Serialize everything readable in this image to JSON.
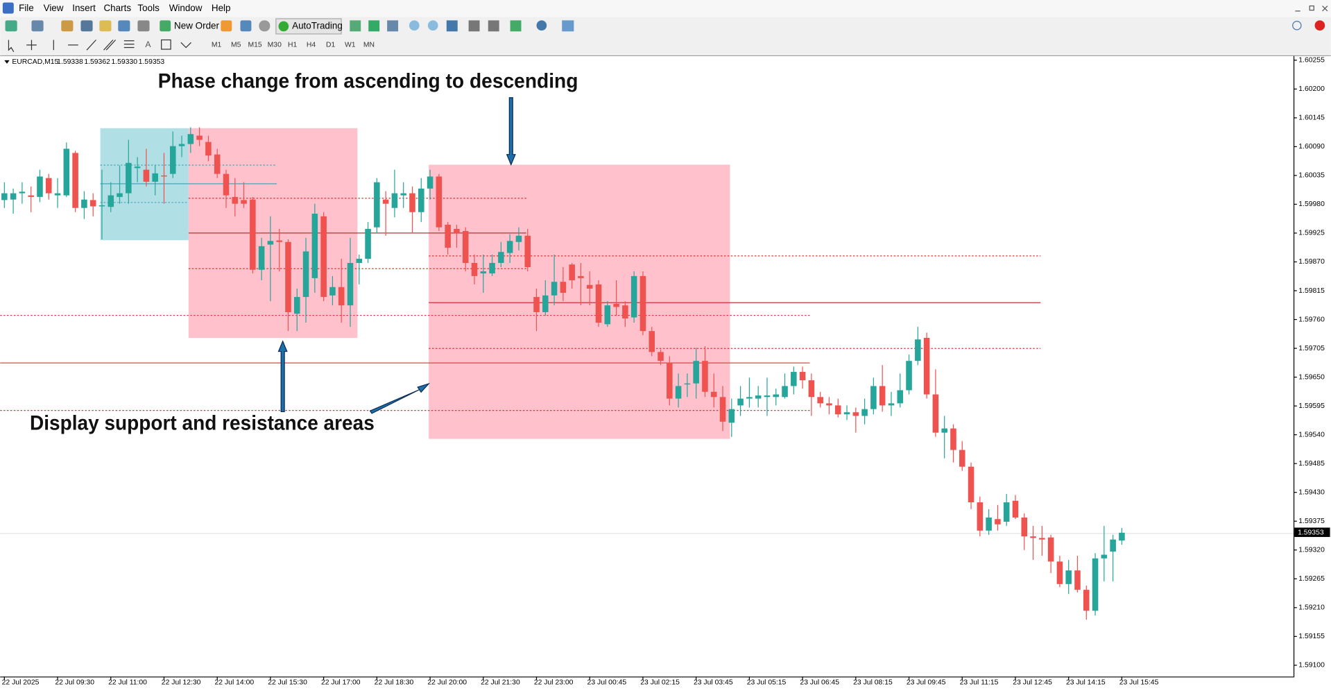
{
  "menu": [
    "File",
    "View",
    "Insert",
    "Charts",
    "Tools",
    "Window",
    "Help"
  ],
  "toolbar": {
    "new_order": "New Order",
    "autotrading": "AutoTrading",
    "timeframes": [
      "M1",
      "M5",
      "M15",
      "M30",
      "H1",
      "H4",
      "D1",
      "W1",
      "MN"
    ]
  },
  "header": {
    "symbol": "EURCAD,M15",
    "ohlc": [
      "1.59338",
      "1.59362",
      "1.59330",
      "1.59353"
    ]
  },
  "chart_data": {
    "type": "candlestick",
    "annotations": [
      "Phase change from ascending to descending",
      "Display support and resistance areas"
    ],
    "up_color": "#26a69a",
    "down_color": "#ef5350",
    "grid": false,
    "ylim": [
      1.5908,
      1.60263
    ],
    "yticks": [
      1.60255,
      {
        "value": 1.602,
        "label": "1.60200"
      },
      1.60145,
      {
        "value": 1.6009,
        "label": "1.60090"
      },
      1.60035,
      {
        "value": 1.5998,
        "label": "1.59980"
      },
      1.59925,
      {
        "value": 1.5987,
        "label": "1.59870"
      },
      1.59815,
      {
        "value": 1.5976,
        "label": "1.59760"
      },
      1.59705,
      {
        "value": 1.5965,
        "label": "1.59650"
      },
      1.59595,
      {
        "value": 1.5954,
        "label": "1.59540"
      },
      1.59485,
      {
        "value": 1.5943,
        "label": "1.59430"
      },
      1.59375,
      {
        "value": 1.5932,
        "label": "1.59320"
      },
      1.59265,
      {
        "value": 1.5921,
        "label": "1.59210"
      },
      1.59155,
      {
        "value": 1.591,
        "label": "1.59100"
      }
    ],
    "categories": [
      "22 Jul 2025",
      null,
      null,
      null,
      null,
      null,
      "22 Jul 09:30",
      null,
      null,
      null,
      null,
      null,
      "22 Jul 11:00",
      null,
      null,
      null,
      null,
      null,
      "22 Jul 12:30",
      null,
      null,
      null,
      null,
      null,
      "22 Jul 14:00",
      null,
      null,
      null,
      null,
      null,
      "22 Jul 15:30",
      null,
      null,
      null,
      null,
      null,
      "22 Jul 17:00",
      null,
      null,
      null,
      null,
      null,
      "22 Jul 18:30",
      null,
      null,
      null,
      null,
      null,
      "22 Jul 20:00",
      null,
      null,
      null,
      null,
      null,
      "22 Jul 21:30",
      null,
      null,
      null,
      null,
      null,
      "22 Jul 23:00",
      null,
      null,
      null,
      null,
      null,
      "23 Jul 00:45",
      null,
      null,
      null,
      null,
      null,
      "23 Jul 02:15",
      null,
      null,
      null,
      null,
      null,
      "23 Jul 03:45",
      null,
      null,
      null,
      null,
      null,
      "23 Jul 05:15",
      null,
      null,
      null,
      null,
      null,
      "23 Jul 06:45",
      null,
      null,
      null,
      null,
      null,
      "23 Jul 08:15",
      null,
      null,
      null,
      null,
      null,
      "23 Jul 09:45",
      null,
      null,
      null,
      null,
      null,
      "23 Jul 11:15",
      null,
      null,
      null,
      null,
      null,
      "23 Jul 12:45",
      null,
      null,
      null,
      null,
      null,
      "23 Jul 14:15",
      null,
      null,
      null,
      null,
      null,
      "23 Jul 15:45"
    ],
    "open": [
      1.59988,
      1.59989,
      1.60001,
      1.59997,
      1.59994,
      1.6003,
      1.59997,
      1.59997,
      1.60078,
      1.59973,
      1.59988,
      1.59976,
      1.59975,
      1.59994,
      1.60001,
      1.60049,
      1.60046,
      1.60023,
      1.60035,
      1.60038,
      1.60091,
      1.60095,
      1.60111,
      1.60099,
      1.60075,
      1.60038,
      1.59994,
      1.59988,
      1.59989,
      1.59855,
      1.59903,
      1.59911,
      1.59908,
      1.59771,
      1.59803,
      1.59839,
      1.59957,
      1.59806,
      1.59822,
      1.59787,
      1.59868,
      1.59876,
      1.59936,
      1.59989,
      1.59973,
      1.59997,
      1.60001,
      1.59965,
      1.6001,
      1.60033,
      1.59941,
      1.59933,
      1.59929,
      1.59868,
      1.59848,
      1.59848,
      1.59868,
      1.59887,
      1.59908,
      1.5992,
      1.59803,
      1.59774,
      1.59806,
      1.59832,
      1.59865,
      1.59843,
      1.59826,
      1.59827,
      1.59751,
      1.5979,
      1.59787,
      1.59764,
      1.59843,
      1.59738,
      1.59698,
      1.59677,
      1.59609,
      1.59636,
      1.59638,
      1.59681,
      1.59622,
      1.59612,
      1.59563,
      1.59596,
      1.59609,
      1.59609,
      1.59612,
      1.59612,
      1.59612,
      1.59633,
      1.5966,
      1.59644,
      1.59612,
      1.596,
      1.59596,
      1.59579,
      1.59583,
      1.59576,
      1.59589,
      1.59633,
      1.59596,
      1.596,
      1.59625,
      1.59681,
      1.59725,
      1.59617,
      1.59544,
      1.59552,
      1.59511,
      1.59479,
      1.59411,
      1.59357,
      1.59379,
      1.59374,
      1.59414,
      1.59382,
      1.59346,
      1.59343,
      1.59344,
      1.59298,
      1.59255,
      1.59281,
      1.59244,
      1.59204,
      1.59304,
      1.59317,
      1.59338
    ],
    "high": [
      1.60022,
      1.6001,
      1.60022,
      1.60014,
      1.60046,
      1.60038,
      1.6003,
      1.60098,
      1.60082,
      1.60005,
      1.60001,
      1.60046,
      1.60022,
      1.60054,
      1.60103,
      1.6007,
      1.60086,
      1.60054,
      1.60078,
      1.60119,
      1.60111,
      1.60127,
      1.60127,
      1.60111,
      1.60086,
      1.60046,
      1.6003,
      1.60022,
      1.59994,
      1.59916,
      1.59957,
      1.59933,
      1.59913,
      1.59819,
      1.59916,
      1.59981,
      1.59965,
      1.59843,
      1.59876,
      1.59916,
      1.59884,
      1.59946,
      1.6003,
      1.60005,
      1.60046,
      1.60022,
      1.60014,
      1.6003,
      1.60046,
      1.60038,
      1.59946,
      1.59941,
      1.59936,
      1.59884,
      1.59884,
      1.59884,
      1.59908,
      1.59923,
      1.59936,
      1.59933,
      1.59819,
      1.59835,
      1.59884,
      1.5986,
      1.59868,
      1.59868,
      1.59852,
      1.59835,
      1.59795,
      1.59835,
      1.59795,
      1.59852,
      1.59852,
      1.59746,
      1.59703,
      1.5969,
      1.59657,
      1.59657,
      1.59706,
      1.59709,
      1.59657,
      1.59633,
      1.59609,
      1.59633,
      1.59649,
      1.59633,
      1.59649,
      1.59628,
      1.59657,
      1.5967,
      1.5967,
      1.59657,
      1.59622,
      1.59612,
      1.59609,
      1.59596,
      1.59592,
      1.59609,
      1.59649,
      1.59673,
      1.59622,
      1.59657,
      1.59693,
      1.59746,
      1.59735,
      1.59665,
      1.59576,
      1.5956,
      1.59528,
      1.59487,
      1.59422,
      1.59398,
      1.59406,
      1.59427,
      1.59425,
      1.5939,
      1.59366,
      1.59366,
      1.59349,
      1.59309,
      1.59301,
      1.59309,
      1.59252,
      1.59314,
      1.59366,
      1.59349,
      1.59362
    ],
    "low": [
      1.59973,
      1.59962,
      1.59981,
      1.59965,
      1.59984,
      1.59989,
      1.59973,
      1.59994,
      1.59965,
      1.59952,
      1.59957,
      1.59913,
      1.59965,
      1.59981,
      1.59981,
      1.60022,
      1.60014,
      1.59997,
      1.59981,
      1.6003,
      1.6007,
      1.60078,
      1.60091,
      1.60062,
      1.6003,
      1.59973,
      1.59957,
      1.59973,
      1.59848,
      1.59835,
      1.59795,
      1.59852,
      1.59738,
      1.59738,
      1.59754,
      1.59811,
      1.59795,
      1.59787,
      1.59754,
      1.59746,
      1.59827,
      1.59868,
      1.59924,
      1.5992,
      1.59955,
      1.59973,
      1.59924,
      1.59946,
      1.59989,
      1.59929,
      1.59884,
      1.59897,
      1.59852,
      1.59827,
      1.59811,
      1.59843,
      1.5986,
      1.59868,
      1.59892,
      1.59852,
      1.59738,
      1.59767,
      1.59787,
      1.59795,
      1.59819,
      1.59787,
      1.59787,
      1.59746,
      1.59746,
      1.59767,
      1.59746,
      1.59754,
      1.5973,
      1.5969,
      1.59673,
      1.59596,
      1.59592,
      1.59612,
      1.59609,
      1.59612,
      1.59592,
      1.59547,
      1.59536,
      1.59576,
      1.59592,
      1.59592,
      1.59576,
      1.59596,
      1.59609,
      1.59617,
      1.59628,
      1.59576,
      1.59592,
      1.59579,
      1.59573,
      1.59568,
      1.59544,
      1.5956,
      1.59579,
      1.59584,
      1.59576,
      1.59592,
      1.59617,
      1.59673,
      1.59609,
      1.59536,
      1.59495,
      1.59487,
      1.59471,
      1.59398,
      1.59346,
      1.59349,
      1.59357,
      1.59366,
      1.59379,
      1.5932,
      1.59301,
      1.59309,
      1.59276,
      1.59249,
      1.59236,
      1.59239,
      1.59187,
      1.59195,
      1.5926,
      1.5926,
      1.5933
    ],
    "close": [
      1.60001,
      1.60001,
      1.60004,
      1.59994,
      1.60033,
      1.60001,
      1.60001,
      1.60086,
      1.59973,
      1.59989,
      1.59976,
      1.59978,
      1.59997,
      1.60001,
      1.60059,
      1.60052,
      1.60023,
      1.60039,
      1.60033,
      1.60091,
      1.60095,
      1.60114,
      1.60103,
      1.60073,
      1.60038,
      1.59997,
      1.59981,
      1.59981,
      1.59855,
      1.599,
      1.5991,
      1.59908,
      1.59774,
      1.59803,
      1.5989,
      1.59962,
      1.59803,
      1.59822,
      1.59787,
      1.59868,
      1.59876,
      1.59933,
      1.60022,
      1.59981,
      1.60001,
      1.60001,
      1.59965,
      1.6001,
      1.60033,
      1.59936,
      1.59897,
      1.59924,
      1.59868,
      1.59843,
      1.59852,
      1.59868,
      1.59889,
      1.5991,
      1.5992,
      1.5986,
      1.59774,
      1.59806,
      1.59832,
      1.59811,
      1.59835,
      1.59839,
      1.59819,
      1.59754,
      1.59787,
      1.59784,
      1.59762,
      1.59843,
      1.59738,
      1.59698,
      1.59681,
      1.59609,
      1.59633,
      1.59638,
      1.59681,
      1.59622,
      1.59612,
      1.59565,
      1.59589,
      1.59609,
      1.59612,
      1.59615,
      1.59615,
      1.59617,
      1.59633,
      1.5966,
      1.59644,
      1.59612,
      1.596,
      1.59596,
      1.59579,
      1.59583,
      1.59576,
      1.59589,
      1.59633,
      1.59596,
      1.596,
      1.59625,
      1.59681,
      1.59722,
      1.59617,
      1.59544,
      1.59552,
      1.59511,
      1.59479,
      1.59411,
      1.59357,
      1.59382,
      1.59369,
      1.59411,
      1.59382,
      1.59346,
      1.59343,
      1.5934,
      1.59298,
      1.59255,
      1.59281,
      1.59244,
      1.59204,
      1.59304,
      1.59311,
      1.5934,
      1.59353
    ]
  }
}
